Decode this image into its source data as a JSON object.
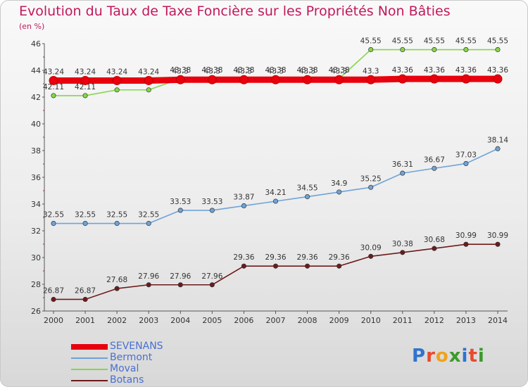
{
  "title": "Evolution du Taux de Taxe Foncière sur les Propriétés Non Bâties",
  "subtitle": "(en %)",
  "logo": {
    "letters": [
      {
        "ch": "P",
        "color": "#2e73d1"
      },
      {
        "ch": "r",
        "color": "#e84a2c"
      },
      {
        "ch": "o",
        "color": "#f0a21c"
      },
      {
        "ch": "x",
        "color": "#3c9a2b"
      },
      {
        "ch": "i",
        "color": "#2e73d1"
      },
      {
        "ch": "t",
        "color": "#e84a2c"
      },
      {
        "ch": "i",
        "color": "#3c9a2b"
      }
    ]
  },
  "chart_data": {
    "type": "line",
    "x": [
      "2000",
      "2001",
      "2002",
      "2003",
      "2004",
      "2005",
      "2006",
      "2007",
      "2008",
      "2009",
      "2010",
      "2011",
      "2012",
      "2013",
      "2014"
    ],
    "ylim": [
      26,
      46
    ],
    "yticks": [
      "26",
      "28",
      "30",
      "32",
      "34",
      "36",
      "38",
      "40",
      "42",
      "44",
      "46"
    ],
    "grid": false,
    "legend_position": "bottom-left",
    "series": [
      {
        "name": "SEVENANS",
        "color": "#e8000e",
        "values": [
          43.24,
          43.24,
          43.24,
          43.24,
          43.3,
          43.3,
          43.3,
          43.3,
          43.3,
          43.3,
          43.3,
          43.36,
          43.36,
          43.36,
          43.36
        ],
        "labels": [
          "43.24",
          "43.24",
          "43.24",
          "43.24",
          "43.3",
          "43.3",
          "43.3",
          "43.3",
          "43.3",
          "43.3",
          "43.3",
          "43.36",
          "43.36",
          "43.36",
          "43.36"
        ]
      },
      {
        "name": "Bermont",
        "color": "#6fa3d8",
        "values": [
          32.55,
          32.55,
          32.55,
          32.55,
          33.53,
          33.53,
          33.87,
          34.21,
          34.55,
          34.9,
          35.25,
          36.31,
          36.67,
          37.03,
          38.14
        ],
        "labels": [
          "32.55",
          "32.55",
          "32.55",
          "32.55",
          "33.53",
          "33.53",
          "33.87",
          "34.21",
          "34.55",
          "34.9",
          "35.25",
          "36.31",
          "36.67",
          "37.03",
          "38.14"
        ]
      },
      {
        "name": "Moval",
        "color": "#86d64a",
        "values": [
          42.11,
          42.11,
          42.54,
          42.54,
          43.38,
          43.38,
          43.38,
          43.38,
          43.38,
          43.38,
          45.55,
          45.55,
          45.55,
          45.55,
          45.55
        ],
        "labels": [
          "42.11",
          "42.11",
          "42.54",
          "42.54",
          "43.38",
          "43.38",
          "43.38",
          "43.38",
          "43.38",
          "43.38",
          "45.55",
          "45.55",
          "45.55",
          "45.55",
          "45.55"
        ]
      },
      {
        "name": "Botans",
        "color": "#6e1a1a",
        "values": [
          26.87,
          26.87,
          27.68,
          27.96,
          27.96,
          27.96,
          29.36,
          29.36,
          29.36,
          29.36,
          30.09,
          30.38,
          30.68,
          30.99,
          30.99
        ],
        "labels": [
          "26.87",
          "26.87",
          "27.68",
          "27.96",
          "27.96",
          "27.96",
          "29.36",
          "29.36",
          "29.36",
          "29.36",
          "30.09",
          "30.38",
          "30.68",
          "30.99",
          "30.99"
        ]
      }
    ]
  }
}
